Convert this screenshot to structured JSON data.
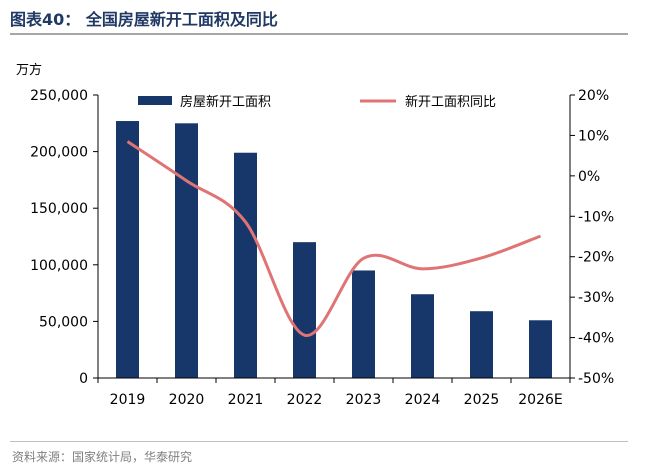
{
  "header": {
    "title": "图表40：  全国房屋新开工面积及同比"
  },
  "footer": {
    "source": "资料来源：国家统计局，华泰研究"
  },
  "chart_data": {
    "type": "bar",
    "categories": [
      "2019",
      "2020",
      "2021",
      "2022",
      "2023",
      "2024",
      "2025",
      "2026E"
    ],
    "series": [
      {
        "name": "房屋新开工面积",
        "type": "bar",
        "axis": "left",
        "color": "#17376b",
        "values": [
          227000,
          225000,
          199000,
          120000,
          95000,
          74000,
          59000,
          51000
        ]
      },
      {
        "name": "新开工面积同比",
        "type": "line",
        "axis": "right",
        "color": "#e07474",
        "values": [
          8.5,
          -1.2,
          -11.4,
          -39.4,
          -20.4,
          -23.0,
          -20.3,
          -14.9
        ]
      }
    ],
    "y_left": {
      "unit_label": "万方",
      "ylim": [
        0,
        250000
      ],
      "ticks": [
        0,
        50000,
        100000,
        150000,
        200000,
        250000
      ],
      "tick_labels": [
        "0",
        "50,000",
        "100,000",
        "150,000",
        "200,000",
        "250,000"
      ]
    },
    "y_right": {
      "ylim": [
        -50,
        20
      ],
      "ticks": [
        20,
        10,
        0,
        -10,
        -20,
        -30,
        -40,
        -50
      ],
      "tick_labels": [
        "20%",
        "10%",
        "0%",
        "-10%",
        "-20%",
        "-30%",
        "-40%",
        "-50%"
      ]
    },
    "legend": {
      "placement": "top"
    },
    "grid": false
  }
}
